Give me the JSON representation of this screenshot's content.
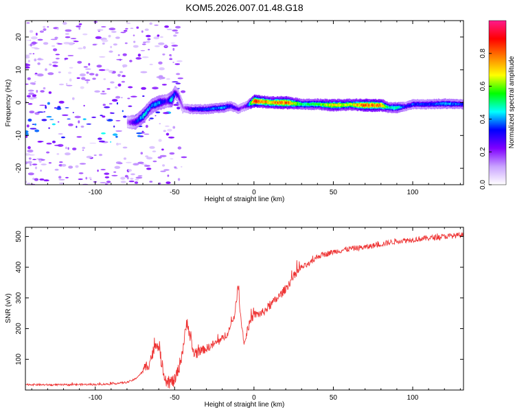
{
  "title": "KOM5.2026.007.01.48.G18",
  "chart_data": [
    {
      "type": "heatmap",
      "name": "spectrogram",
      "xlabel": "Height of straight line (km)",
      "ylabel": "Frequency (Hz)",
      "xlim": [
        -144,
        132
      ],
      "ylim": [
        -25,
        25
      ],
      "xticks": [
        -100,
        -50,
        0,
        50,
        100
      ],
      "yticks": [
        -20,
        -10,
        0,
        10,
        20
      ],
      "xtick_labels": [
        "-100",
        "-50",
        "0",
        "50",
        "100"
      ],
      "ytick_labels": [
        "-20",
        "-10",
        "0",
        "10",
        "20"
      ],
      "ridge": {
        "x": [
          -80,
          -75,
          -70,
          -65,
          -60,
          -55,
          -52,
          -50,
          -48,
          -45,
          -40,
          -30,
          -20,
          -15,
          -10,
          -8,
          -5,
          0,
          5,
          10,
          20,
          30,
          40,
          50,
          60,
          70,
          80,
          85,
          90,
          95,
          100,
          110,
          120,
          132
        ],
        "y": [
          -6,
          -6,
          -4,
          -1,
          0,
          0.5,
          1,
          3,
          2,
          -1.5,
          -2,
          -2,
          -1.5,
          -1,
          -2,
          -1.5,
          -1,
          0.5,
          0.3,
          0,
          0,
          -0.5,
          -0.5,
          -0.8,
          -0.6,
          -0.8,
          -0.8,
          -1.5,
          -1.5,
          -1.2,
          -0.5,
          -0.5,
          -0.3,
          -0.5
        ],
        "amp": [
          0.15,
          0.3,
          0.45,
          0.35,
          0.4,
          0.25,
          0.5,
          0.3,
          0.25,
          0.15,
          0.3,
          0.35,
          0.4,
          0.3,
          0.25,
          0.2,
          0.25,
          0.85,
          0.75,
          0.7,
          0.8,
          0.5,
          0.55,
          0.7,
          0.6,
          0.8,
          0.75,
          0.45,
          0.5,
          0.3,
          0.35,
          0.35,
          0.4,
          0.35
        ]
      },
      "colorbar": {
        "label": "Normalized spectral amplitude",
        "range": [
          0,
          1
        ],
        "ticks": [
          0.0,
          0.2,
          0.4,
          0.6,
          0.8
        ],
        "tick_labels": [
          "0.0",
          "0.2",
          "0.4",
          "0.6",
          "0.8"
        ],
        "colors": [
          "#ffffff",
          "#c9a3ff",
          "#7f00ff",
          "#0000ff",
          "#00ffff",
          "#00ff00",
          "#ffff00",
          "#ff8000",
          "#ff0000",
          "#ff1a8c"
        ]
      }
    },
    {
      "type": "line",
      "name": "snr",
      "xlabel": "Height of straight line (km)",
      "ylabel": "SNR (v/v)",
      "xlim": [
        -144,
        132
      ],
      "ylim": [
        0,
        530
      ],
      "xticks": [
        -100,
        -50,
        0,
        50,
        100
      ],
      "yticks": [
        100,
        200,
        300,
        400,
        500
      ],
      "xtick_labels": [
        "-100",
        "-50",
        "0",
        "50",
        "100"
      ],
      "ytick_labels": [
        "100",
        "200",
        "300",
        "400",
        "500"
      ],
      "color": "#ee3333",
      "series": [
        {
          "name": "SNR",
          "x": [
            -144,
            -130,
            -120,
            -110,
            -100,
            -90,
            -80,
            -75,
            -70,
            -66,
            -63,
            -61,
            -59,
            -57,
            -55,
            -53,
            -50,
            -48,
            -46,
            -44,
            -42,
            -40,
            -38,
            -35,
            -30,
            -25,
            -20,
            -15,
            -12,
            -10,
            -8,
            -6,
            -4,
            -2,
            0,
            5,
            10,
            15,
            20,
            25,
            30,
            35,
            40,
            50,
            60,
            70,
            80,
            90,
            100,
            110,
            120,
            132
          ],
          "y": [
            18,
            17,
            17,
            18,
            18,
            20,
            25,
            35,
            60,
            90,
            130,
            160,
            110,
            60,
            30,
            25,
            30,
            60,
            100,
            160,
            230,
            160,
            120,
            125,
            135,
            150,
            165,
            200,
            250,
            340,
            220,
            150,
            200,
            225,
            245,
            250,
            275,
            300,
            330,
            370,
            400,
            410,
            435,
            450,
            460,
            465,
            475,
            485,
            490,
            495,
            500,
            505
          ]
        }
      ]
    }
  ]
}
